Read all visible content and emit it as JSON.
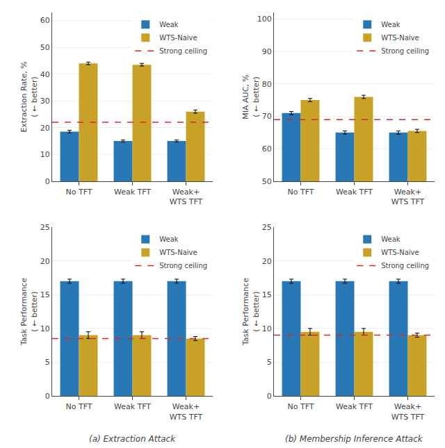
{
  "chart_data": [
    {
      "type": "bar",
      "categories": [
        "No TFT",
        "Weak TFT",
        "Weak+\nWTS TFT"
      ],
      "ylabel": "Extraction Rate, %\n( ← better)",
      "ylim": [
        0,
        63
      ],
      "yticks": [
        0,
        10,
        20,
        30,
        40,
        50,
        60
      ],
      "grid": "y",
      "legend": "upper right",
      "series": [
        {
          "name": "Weak",
          "color": "#2878b5",
          "values": [
            18.5,
            15.0,
            15.0
          ],
          "errors": [
            0.5,
            0.4,
            0.4
          ]
        },
        {
          "name": "WTS-Naive",
          "color": "#c8a227",
          "values": [
            44.0,
            43.5,
            26.0
          ],
          "errors": [
            0.5,
            0.5,
            0.6
          ]
        },
        {
          "name": "Strong ceiling",
          "type": "hline",
          "color": "#d62728",
          "line_style": "dashed",
          "value": 22.0
        }
      ]
    },
    {
      "type": "bar",
      "categories": [
        "No TFT",
        "Weak TFT",
        "Weak+\nWTS TFT"
      ],
      "ylabel": "MIA AUC, %\n( ← better)",
      "ylim": [
        50,
        102
      ],
      "yticks": [
        50,
        60,
        70,
        80,
        90,
        100
      ],
      "grid": "y",
      "legend": "upper right",
      "series": [
        {
          "name": "Weak",
          "color": "#2878b5",
          "values": [
            71.0,
            65.0,
            65.0
          ],
          "errors": [
            0.5,
            0.5,
            0.5
          ]
        },
        {
          "name": "WTS-Naive",
          "color": "#c8a227",
          "values": [
            75.0,
            76.0,
            65.5
          ],
          "errors": [
            0.5,
            0.5,
            0.5
          ]
        },
        {
          "name": "Strong ceiling",
          "type": "hline",
          "color": "#d62728",
          "line_style": "dashed",
          "value": 69.0
        }
      ]
    },
    {
      "type": "bar",
      "categories": [
        "No TFT",
        "Weak TFT",
        "Weak+\nWTS TFT"
      ],
      "ylabel": "Task Performance\n( ← better)",
      "ylim": [
        0,
        25
      ],
      "yticks": [
        0,
        5,
        10,
        15,
        20,
        25
      ],
      "grid": "y",
      "legend": "upper right",
      "annotations": [
        "(a) Extraction Attack"
      ],
      "series": [
        {
          "name": "Weak",
          "color": "#2878b5",
          "values": [
            17.0,
            17.0,
            17.0
          ],
          "errors": [
            0.3,
            0.3,
            0.3
          ]
        },
        {
          "name": "WTS-Naive",
          "color": "#c8a227",
          "values": [
            9.0,
            9.0,
            8.5
          ],
          "errors": [
            0.5,
            0.5,
            0.3
          ]
        },
        {
          "name": "Strong ceiling",
          "type": "hline",
          "color": "#d62728",
          "line_style": "dashed",
          "value": 8.5
        }
      ]
    },
    {
      "type": "bar",
      "categories": [
        "No TFT",
        "Weak TFT",
        "Weak+\nWTS TFT"
      ],
      "ylabel": "Task Performance\n( ← better)",
      "ylim": [
        0,
        25
      ],
      "yticks": [
        0,
        5,
        10,
        15,
        20,
        25
      ],
      "grid": "y",
      "legend": "upper right",
      "annotations": [
        "(b) Membership Inference Attack"
      ],
      "series": [
        {
          "name": "Weak",
          "color": "#2878b5",
          "values": [
            17.0,
            17.0,
            17.0
          ],
          "errors": [
            0.3,
            0.3,
            0.3
          ]
        },
        {
          "name": "WTS-Naive",
          "color": "#c8a227",
          "values": [
            9.5,
            9.5,
            9.0
          ],
          "errors": [
            0.5,
            0.5,
            0.3
          ]
        },
        {
          "name": "Strong ceiling",
          "type": "hline",
          "color": "#d62728",
          "line_style": "dashed",
          "value": 9.0
        }
      ]
    }
  ]
}
